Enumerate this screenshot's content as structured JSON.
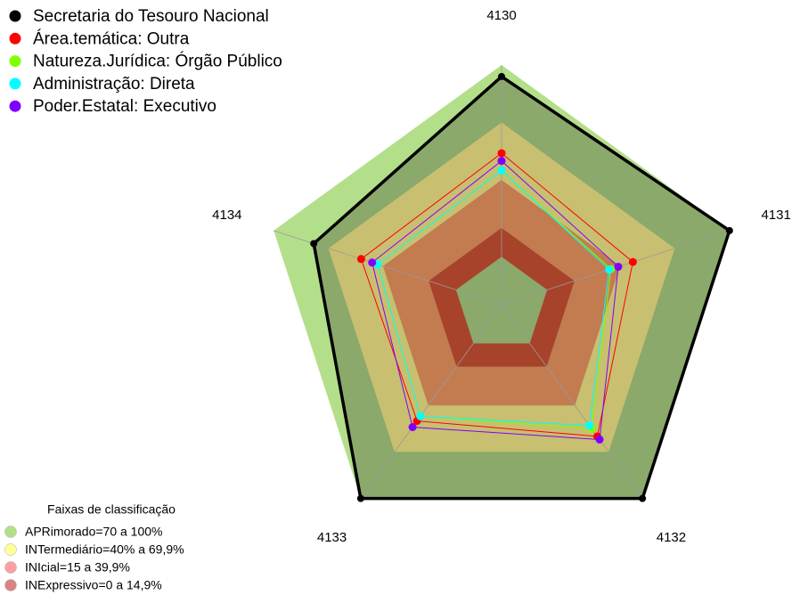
{
  "chart_data": {
    "type": "radar",
    "categories": [
      "4130",
      "4131",
      "4132",
      "4133",
      "4134"
    ],
    "ylim": [
      -25,
      100
    ],
    "series": [
      {
        "name": "Secretaria do Tesouro Nacional",
        "color": "#000000",
        "area_color": "#8aa96b",
        "values": [
          94,
          100,
          100,
          100,
          78
        ]
      },
      {
        "name": "Área.temática: Outra",
        "color": "#ff0000",
        "values": [
          54,
          47,
          60,
          50,
          52
        ]
      },
      {
        "name": "Natureza.Jurídica: Órgão Público",
        "color": "#80ff00",
        "values": [
          45,
          35,
          55,
          47,
          43
        ]
      },
      {
        "name": "Administração: Direta",
        "color": "#00ffff",
        "values": [
          45,
          34,
          53,
          47,
          43
        ]
      },
      {
        "name": "Poder.Estatal: Executivo",
        "color": "#8000ff",
        "values": [
          50,
          39,
          62,
          54,
          46
        ]
      }
    ],
    "bands_title": "Faixas de classificação",
    "bands": [
      {
        "label": "APRimorado=70 a 100%",
        "from": 70,
        "to": 100,
        "color": "#b4df8a",
        "legend_color": "#b4df8a"
      },
      {
        "label": "INTermediário=40% a 69,9%",
        "from": 40,
        "to": 70,
        "color": "#c8bf70",
        "legend_color": "#ffff99"
      },
      {
        "label": "INIcial=15 a 39,9%",
        "from": 15,
        "to": 40,
        "color": "#c27c50",
        "legend_color": "#ff9f9f"
      },
      {
        "label": "INExpressivo=0 a 14,9%",
        "from": 0,
        "to": 15,
        "color": "#a8432b",
        "legend_color": "#d98383"
      }
    ]
  }
}
